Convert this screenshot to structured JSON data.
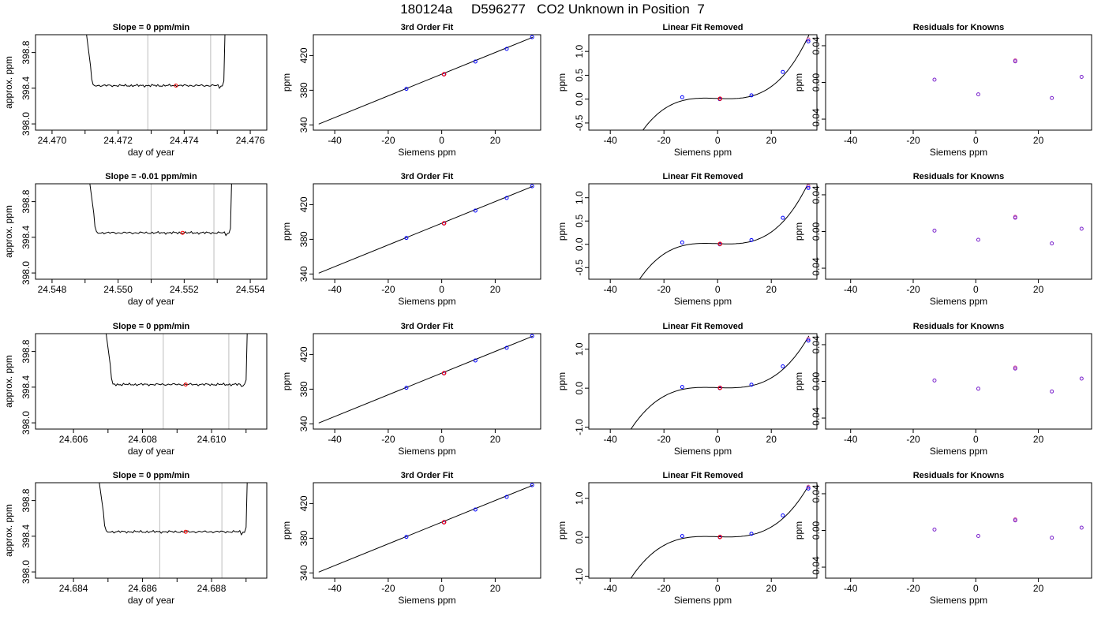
{
  "page_title": "180124a     D596277   CO2 Unknown in Position  7",
  "chart_data": [
    {
      "type": "line",
      "row": 1,
      "title": "Slope =  0  ppm/min",
      "xlabel": "day of year",
      "ylabel": "approx. ppm",
      "xlim": [
        24.4695,
        24.4765
      ],
      "ylim": [
        397.93,
        399.0
      ],
      "xticks": [
        "24.470",
        "24.472",
        "24.474",
        "24.476"
      ],
      "yticks": [
        "398.0",
        "398.4",
        "398.8"
      ],
      "x_minor_ticks": [
        24.471,
        24.473,
        24.475
      ],
      "vlines": [
        24.4729,
        24.4748
      ],
      "point": {
        "x": 24.47375,
        "y": 398.43
      },
      "trace": {
        "x_start": 24.4712,
        "x_end": 24.4752,
        "baseline": 398.43,
        "left_top": 24.4711,
        "right_top": 24.4752
      }
    },
    {
      "type": "scatter",
      "row": 1,
      "title": "3rd Order Fit",
      "xlabel": "Siemens ppm",
      "ylabel": "ppm",
      "xlim": [
        -48,
        37
      ],
      "ylim": [
        334,
        444
      ],
      "xticks": [
        "-40",
        "-20",
        "0",
        "20"
      ],
      "yticks": [
        "340",
        "380",
        "420"
      ],
      "fit_line": [
        [
          -46,
          341
        ],
        [
          34,
          441
        ]
      ],
      "points": [
        [
          -13.2,
          381.6
        ],
        [
          0.8,
          398.2
        ],
        [
          12.6,
          413.1
        ],
        [
          24.3,
          427.6
        ],
        [
          33.8,
          441.2
        ]
      ],
      "unknown": {
        "x": 0.9,
        "y": 398.5
      }
    },
    {
      "type": "scatter",
      "row": 1,
      "title": "Linear Fit Removed",
      "xlabel": "Siemens ppm",
      "ylabel": "ppm",
      "xlim": [
        -48,
        37
      ],
      "ylim": [
        -0.65,
        1.35
      ],
      "xticks": [
        "-40",
        "-20",
        "0",
        "20"
      ],
      "yticks": [
        "-0.5",
        "0.0",
        "0.5",
        "1.0"
      ],
      "curve_cubic_coeffs": [
        0.0142,
        -0.00198,
        3.27e-05,
        3.45e-05
      ],
      "points": [
        [
          -13.2,
          0.04
        ],
        [
          0.8,
          0.0
        ],
        [
          12.6,
          0.08
        ],
        [
          24.3,
          0.57
        ],
        [
          33.8,
          1.21
        ]
      ],
      "extra_points": [
        [
          33.8,
          1.25
        ]
      ],
      "unknown": {
        "x": 0.9,
        "y": 0.01
      }
    },
    {
      "type": "scatter",
      "row": 1,
      "title": "Residuals for Knowns",
      "xlabel": "Siemens ppm",
      "ylabel": "ppm",
      "xlim": [
        -48,
        37
      ],
      "ylim": [
        -0.052,
        0.052
      ],
      "xticks": [
        "-40",
        "-20",
        "0",
        "20"
      ],
      "yticks": [
        "-0.04",
        "0.00",
        "0.04"
      ],
      "points": [
        [
          -13.2,
          0.003
        ],
        [
          0.8,
          -0.013
        ],
        [
          12.6,
          0.023
        ],
        [
          24.3,
          -0.017
        ],
        [
          33.8,
          0.006
        ]
      ],
      "extra_points": [
        [
          12.6,
          0.024
        ]
      ]
    },
    {
      "type": "line",
      "row": 2,
      "title": "Slope =  -0.01  ppm/min",
      "xlabel": "day of year",
      "ylabel": "approx. ppm",
      "xlim": [
        24.5475,
        24.5545
      ],
      "ylim": [
        397.93,
        399.0
      ],
      "xticks": [
        "24.548",
        "24.550",
        "24.552",
        "24.554"
      ],
      "yticks": [
        "398.0",
        "398.4",
        "398.8"
      ],
      "x_minor_ticks": [
        24.549,
        24.551,
        24.553
      ],
      "vlines": [
        24.551,
        24.5529
      ],
      "point": {
        "x": 24.55195,
        "y": 398.45
      },
      "trace": {
        "x_start": 24.5493,
        "x_end": 24.5534,
        "baseline": 398.45,
        "left_top": 24.5492,
        "right_top": 24.5534
      }
    },
    {
      "type": "scatter",
      "row": 2,
      "title": "3rd Order Fit",
      "xlabel": "Siemens ppm",
      "ylabel": "ppm",
      "xlim": [
        -48,
        37
      ],
      "ylim": [
        334,
        444
      ],
      "xticks": [
        "-40",
        "-20",
        "0",
        "20"
      ],
      "yticks": [
        "340",
        "380",
        "420"
      ],
      "fit_line": [
        [
          -46,
          341
        ],
        [
          34,
          441
        ]
      ],
      "points": [
        [
          -13.2,
          381.6
        ],
        [
          0.8,
          398.2
        ],
        [
          12.6,
          413.1
        ],
        [
          24.3,
          427.6
        ],
        [
          33.8,
          441.2
        ]
      ],
      "unknown": {
        "x": 0.9,
        "y": 398.5
      }
    },
    {
      "type": "scatter",
      "row": 2,
      "title": "Linear Fit Removed",
      "xlabel": "Siemens ppm",
      "ylabel": "ppm",
      "xlim": [
        -48,
        37
      ],
      "ylim": [
        -0.75,
        1.3
      ],
      "xticks": [
        "-40",
        "-20",
        "0",
        "20"
      ],
      "yticks": [
        "-0.5",
        "0.0",
        "0.5",
        "1.0"
      ],
      "curve_cubic_coeffs": [
        0.0142,
        -0.00198,
        3.27e-05,
        3.45e-05
      ],
      "points": [
        [
          -13.2,
          0.04
        ],
        [
          0.8,
          0.0
        ],
        [
          12.6,
          0.09
        ],
        [
          24.3,
          0.57
        ],
        [
          33.8,
          1.21
        ]
      ],
      "extra_points": [
        [
          33.8,
          1.25
        ]
      ],
      "unknown": {
        "x": 0.9,
        "y": 0.01
      }
    },
    {
      "type": "scatter",
      "row": 2,
      "title": "Residuals for Knowns",
      "xlabel": "Siemens ppm",
      "ylabel": "ppm",
      "xlim": [
        -48,
        37
      ],
      "ylim": [
        -0.052,
        0.052
      ],
      "xticks": [
        "-40",
        "-20",
        "0",
        "20"
      ],
      "yticks": [
        "-0.04",
        "0.00",
        "0.04"
      ],
      "points": [
        [
          -13.2,
          0.001
        ],
        [
          0.8,
          -0.009
        ],
        [
          12.6,
          0.015
        ],
        [
          24.3,
          -0.013
        ],
        [
          33.8,
          0.003
        ]
      ],
      "extra_points": [
        [
          12.6,
          0.016
        ]
      ]
    },
    {
      "type": "line",
      "row": 3,
      "title": "Slope =  0  ppm/min",
      "xlabel": "day of year",
      "ylabel": "approx. ppm",
      "xlim": [
        24.6049,
        24.6116
      ],
      "ylim": [
        397.93,
        399.0
      ],
      "xticks": [
        "24.606",
        "24.608",
        "24.610"
      ],
      "yticks": [
        "398.0",
        "398.4",
        "398.8"
      ],
      "x_minor_ticks": [
        24.607,
        24.609,
        24.611
      ],
      "vlines": [
        24.6086,
        24.6105
      ],
      "point": {
        "x": 24.60925,
        "y": 398.43
      },
      "trace": {
        "x_start": 24.6071,
        "x_end": 24.611,
        "baseline": 398.43,
        "left_top": 24.607,
        "right_top": 24.611
      }
    },
    {
      "type": "scatter",
      "row": 3,
      "title": "3rd Order Fit",
      "xlabel": "Siemens ppm",
      "ylabel": "ppm",
      "xlim": [
        -48,
        37
      ],
      "ylim": [
        334,
        444
      ],
      "xticks": [
        "-40",
        "-20",
        "0",
        "20"
      ],
      "yticks": [
        "340",
        "380",
        "420"
      ],
      "fit_line": [
        [
          -46,
          341
        ],
        [
          34,
          441
        ]
      ],
      "points": [
        [
          -13.2,
          381.6
        ],
        [
          0.8,
          398.2
        ],
        [
          12.6,
          413.1
        ],
        [
          24.3,
          427.6
        ],
        [
          33.8,
          441.2
        ]
      ],
      "unknown": {
        "x": 0.9,
        "y": 398.5
      }
    },
    {
      "type": "scatter",
      "row": 3,
      "title": "Linear Fit Removed",
      "xlabel": "Siemens ppm",
      "ylabel": "ppm",
      "xlim": [
        -48,
        37
      ],
      "ylim": [
        -1.05,
        1.4
      ],
      "xticks": [
        "-40",
        "-20",
        "0",
        "20"
      ],
      "yticks": [
        "-1.0",
        "0.0",
        "1.0"
      ],
      "curve_cubic_coeffs": [
        0.0142,
        -0.00198,
        3.27e-05,
        3.45e-05
      ],
      "points": [
        [
          -13.2,
          0.03
        ],
        [
          0.8,
          0.0
        ],
        [
          12.6,
          0.09
        ],
        [
          24.3,
          0.56
        ],
        [
          33.8,
          1.22
        ]
      ],
      "extra_points": [
        [
          33.8,
          1.26
        ]
      ],
      "unknown": {
        "x": 0.9,
        "y": 0.01
      }
    },
    {
      "type": "scatter",
      "row": 3,
      "title": "Residuals for Knowns",
      "xlabel": "Siemens ppm",
      "ylabel": "ppm",
      "xlim": [
        -48,
        37
      ],
      "ylim": [
        -0.052,
        0.052
      ],
      "xticks": [
        "-40",
        "-20",
        "0",
        "20"
      ],
      "yticks": [
        "-0.04",
        "0.00",
        "0.04"
      ],
      "points": [
        [
          -13.2,
          0.001
        ],
        [
          0.8,
          -0.008
        ],
        [
          12.6,
          0.014
        ],
        [
          24.3,
          -0.011
        ],
        [
          33.8,
          0.003
        ]
      ],
      "extra_points": [
        [
          12.6,
          0.015
        ]
      ]
    },
    {
      "type": "line",
      "row": 4,
      "title": "Slope =  0  ppm/min",
      "xlabel": "day of year",
      "ylabel": "approx. ppm",
      "xlim": [
        24.6829,
        24.6896
      ],
      "ylim": [
        397.93,
        399.0
      ],
      "xticks": [
        "24.684",
        "24.686",
        "24.688"
      ],
      "yticks": [
        "398.0",
        "398.4",
        "398.8"
      ],
      "x_minor_ticks": [
        24.685,
        24.687,
        24.689
      ],
      "vlines": [
        24.6865,
        24.6883
      ],
      "point": {
        "x": 24.68725,
        "y": 398.45
      },
      "trace": {
        "x_start": 24.6849,
        "x_end": 24.689,
        "baseline": 398.45,
        "left_top": 24.6848,
        "right_top": 24.689
      }
    },
    {
      "type": "scatter",
      "row": 4,
      "title": "3rd Order Fit",
      "xlabel": "Siemens ppm",
      "ylabel": "ppm",
      "xlim": [
        -48,
        37
      ],
      "ylim": [
        334,
        444
      ],
      "xticks": [
        "-40",
        "-20",
        "0",
        "20"
      ],
      "yticks": [
        "340",
        "380",
        "420"
      ],
      "fit_line": [
        [
          -46,
          341
        ],
        [
          34,
          441
        ]
      ],
      "points": [
        [
          -13.2,
          381.6
        ],
        [
          0.8,
          398.2
        ],
        [
          12.6,
          413.1
        ],
        [
          24.3,
          427.6
        ],
        [
          33.8,
          441.2
        ]
      ],
      "unknown": {
        "x": 0.9,
        "y": 398.5
      }
    },
    {
      "type": "scatter",
      "row": 4,
      "title": "Linear Fit Removed",
      "xlabel": "Siemens ppm",
      "ylabel": "ppm",
      "xlim": [
        -48,
        37
      ],
      "ylim": [
        -1.05,
        1.4
      ],
      "xticks": [
        "-40",
        "-20",
        "0",
        "20"
      ],
      "yticks": [
        "-1.0",
        "0.0",
        "1.0"
      ],
      "curve_cubic_coeffs": [
        0.0142,
        -0.00198,
        3.27e-05,
        3.45e-05
      ],
      "points": [
        [
          -13.2,
          0.03
        ],
        [
          0.8,
          0.0
        ],
        [
          12.6,
          0.09
        ],
        [
          24.3,
          0.56
        ],
        [
          33.8,
          1.25
        ]
      ],
      "extra_points": [
        [
          33.8,
          1.29
        ]
      ],
      "unknown": {
        "x": 0.9,
        "y": 0.01
      }
    },
    {
      "type": "scatter",
      "row": 4,
      "title": "Residuals for Knowns",
      "xlabel": "Siemens ppm",
      "ylabel": "ppm",
      "xlim": [
        -48,
        37
      ],
      "ylim": [
        -0.052,
        0.052
      ],
      "xticks": [
        "-40",
        "-20",
        "0",
        "20"
      ],
      "yticks": [
        "-0.04",
        "0.00",
        "0.04"
      ],
      "points": [
        [
          -13.2,
          0.001
        ],
        [
          0.8,
          -0.006
        ],
        [
          12.6,
          0.011
        ],
        [
          24.3,
          -0.008
        ],
        [
          33.8,
          0.003
        ]
      ],
      "extra_points": [
        [
          12.6,
          0.012
        ]
      ]
    }
  ]
}
